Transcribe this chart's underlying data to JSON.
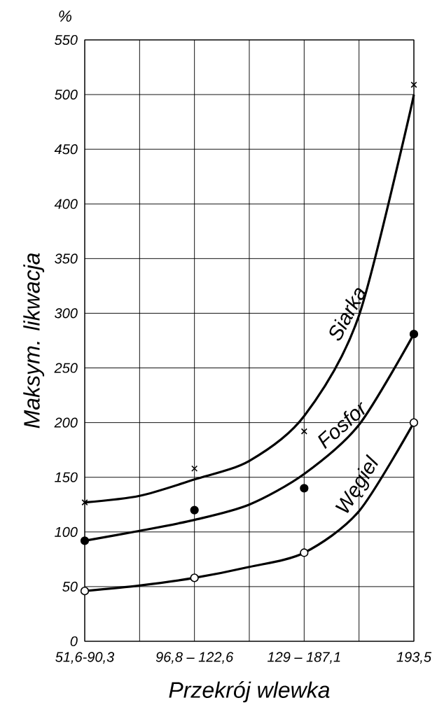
{
  "chart_data": {
    "type": "line",
    "xlabel": "Przekrój wlewka",
    "ylabel": "Maksym. likwacja",
    "annotations": [
      "%"
    ],
    "categories": [
      "51,6-90,3",
      null,
      "96,8 – 122,6",
      null,
      "129 – 187,1",
      null,
      "193,5"
    ],
    "ylim": [
      0,
      550
    ],
    "yticks": [
      0,
      50,
      100,
      150,
      200,
      250,
      300,
      350,
      400,
      450,
      500,
      550
    ],
    "grid": true,
    "series": [
      {
        "name": "Siarka",
        "color": "#000000",
        "marker": "none",
        "values": [
          127,
          133,
          148,
          165,
          206,
          298,
          500
        ]
      },
      {
        "name": "Fosfor",
        "color": "#000000",
        "marker": "none",
        "values": [
          92,
          101,
          111,
          125,
          153,
          198,
          281
        ]
      },
      {
        "name": "Węgiel",
        "color": "#000000",
        "marker": "none",
        "values": [
          46,
          51,
          58,
          68,
          81,
          119,
          200
        ]
      },
      {
        "type": "scatter",
        "color": "#000000",
        "marker": "cross",
        "values": [
          127,
          null,
          158,
          null,
          192,
          null,
          509
        ]
      },
      {
        "type": "scatter",
        "color": "#000000",
        "marker": "circle",
        "values": [
          92,
          null,
          120,
          null,
          140,
          null,
          281
        ]
      },
      {
        "type": "scatter",
        "color": "#ffffff",
        "marker": "circle",
        "values": [
          46,
          null,
          58,
          null,
          81,
          null,
          200
        ]
      }
    ]
  }
}
